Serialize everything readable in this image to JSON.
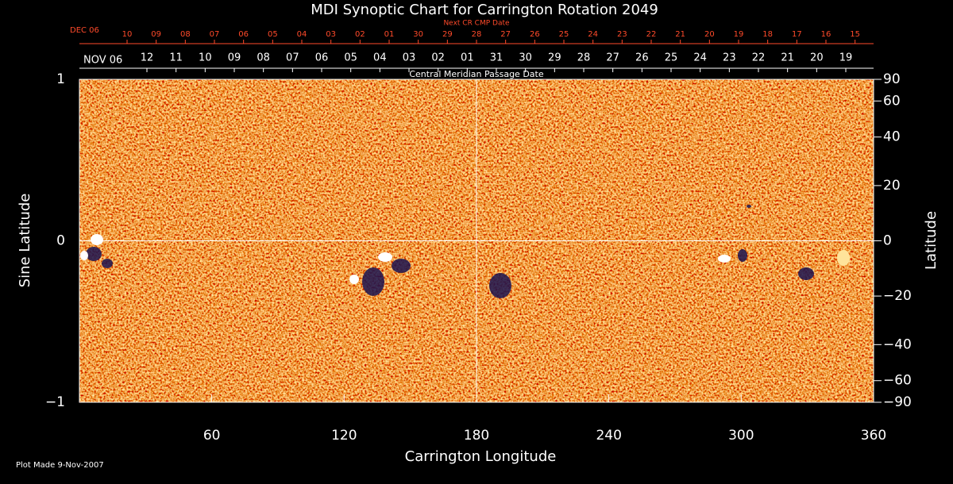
{
  "chart_data": {
    "type": "synoptic",
    "title": "MDI Synoptic Chart for Carrington Rotation 2049",
    "xlabel": "Carrington Longitude",
    "ylabel": "Sine Latitude",
    "y2label": "Latitude",
    "xlim": [
      0,
      360
    ],
    "xticks": [
      60,
      120,
      180,
      240,
      300,
      360
    ],
    "ylim": [
      -1,
      1
    ],
    "yticks": [
      {
        "value": -1,
        "label": "−1"
      },
      0,
      1
    ],
    "y2lim": [
      -90,
      90
    ],
    "y2scale": "sine",
    "y2ticks": [
      {
        "value": -90,
        "label": "−90"
      },
      {
        "value": -60,
        "label": "−60"
      },
      {
        "value": -40,
        "label": "−40"
      },
      {
        "value": -20,
        "label": "−20"
      },
      0,
      20,
      40,
      60,
      90
    ],
    "reference_lines": {
      "x": 180,
      "y": 0
    },
    "next_cr_axis": {
      "title": "Next CR CMP Date",
      "month": "DEC 06",
      "color": "#ff4a2a",
      "labels": [
        "10",
        "09",
        "08",
        "07",
        "06",
        "05",
        "04",
        "03",
        "02",
        "01",
        "30",
        "29",
        "28",
        "27",
        "26",
        "25",
        "24",
        "23",
        "22",
        "21",
        "20",
        "19",
        "18",
        "17",
        "16",
        "15"
      ],
      "x": [
        21.6,
        34.8,
        48.0,
        61.2,
        74.4,
        87.6,
        100.8,
        114.0,
        127.2,
        140.4,
        153.6,
        166.8,
        180.0,
        193.2,
        206.4,
        219.6,
        232.8,
        246.0,
        259.2,
        272.4,
        285.6,
        298.8,
        312.0,
        325.2,
        338.4,
        351.6
      ]
    },
    "cmp_axis": {
      "title": "Central Meridian Passage Date",
      "month": "NOV 06",
      "color": "#ffffff",
      "labels": [
        "12",
        "11",
        "10",
        "09",
        "08",
        "07",
        "06",
        "05",
        "04",
        "03",
        "02",
        "01",
        "31",
        "30",
        "29",
        "28",
        "27",
        "26",
        "25",
        "24",
        "23",
        "22",
        "21",
        "20",
        "19"
      ],
      "x": [
        30.6,
        43.8,
        57.0,
        70.2,
        83.4,
        96.6,
        109.8,
        123.0,
        136.2,
        149.4,
        162.6,
        175.8,
        189.0,
        202.2,
        215.4,
        228.6,
        241.8,
        255.0,
        268.2,
        281.4,
        294.6,
        307.8,
        321.0,
        334.2,
        347.4
      ]
    },
    "footer": "Plot Made  9-Nov-2007"
  }
}
